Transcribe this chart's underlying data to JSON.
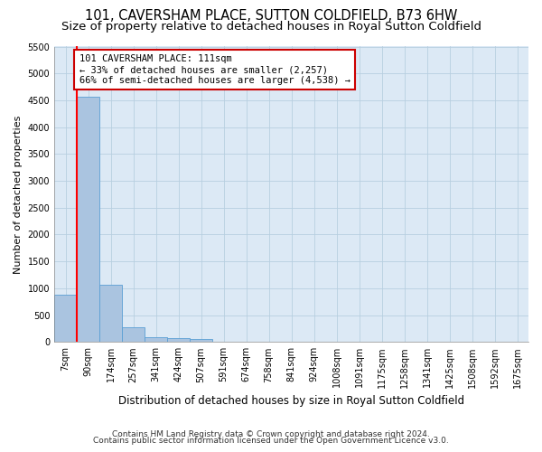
{
  "title": "101, CAVERSHAM PLACE, SUTTON COLDFIELD, B73 6HW",
  "subtitle": "Size of property relative to detached houses in Royal Sutton Coldfield",
  "xlabel": "Distribution of detached houses by size in Royal Sutton Coldfield",
  "ylabel": "Number of detached properties",
  "footnote1": "Contains HM Land Registry data © Crown copyright and database right 2024.",
  "footnote2": "Contains public sector information licensed under the Open Government Licence v3.0.",
  "bar_labels": [
    "7sqm",
    "90sqm",
    "174sqm",
    "257sqm",
    "341sqm",
    "424sqm",
    "507sqm",
    "591sqm",
    "674sqm",
    "758sqm",
    "841sqm",
    "924sqm",
    "1008sqm",
    "1091sqm",
    "1175sqm",
    "1258sqm",
    "1341sqm",
    "1425sqm",
    "1508sqm",
    "1592sqm",
    "1675sqm"
  ],
  "bar_values": [
    880,
    4560,
    1060,
    275,
    90,
    80,
    50,
    0,
    0,
    0,
    0,
    0,
    0,
    0,
    0,
    0,
    0,
    0,
    0,
    0,
    0
  ],
  "bar_color": "#aac4e0",
  "bar_edge_color": "#5a9fd4",
  "plot_bg_color": "#dce9f5",
  "fig_bg_color": "#ffffff",
  "ylim": [
    0,
    5500
  ],
  "yticks": [
    0,
    500,
    1000,
    1500,
    2000,
    2500,
    3000,
    3500,
    4000,
    4500,
    5000,
    5500
  ],
  "annotation_text": "101 CAVERSHAM PLACE: 111sqm\n← 33% of detached houses are smaller (2,257)\n66% of semi-detached houses are larger (4,538) →",
  "annotation_box_color": "#ffffff",
  "annotation_border_color": "#cc0000",
  "grid_color": "#b8cfe0",
  "title_fontsize": 10.5,
  "subtitle_fontsize": 9.5,
  "ylabel_fontsize": 8,
  "xlabel_fontsize": 8.5,
  "tick_fontsize": 7,
  "annot_fontsize": 7.5,
  "footnote_fontsize": 6.5
}
